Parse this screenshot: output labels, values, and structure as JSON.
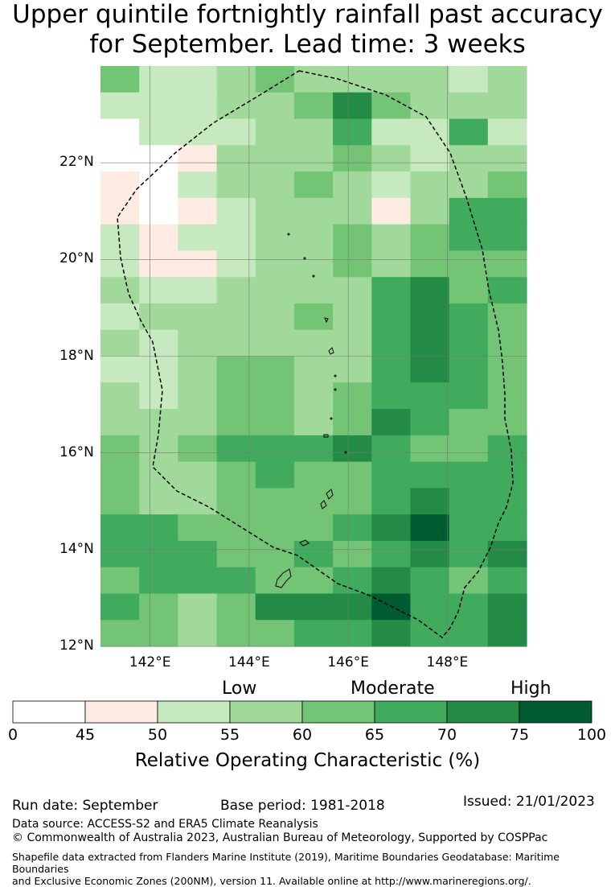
{
  "title_line1": "Upper quintile fortnightly rainfall past accuracy",
  "title_line2": "for September. Lead time: 3 weeks",
  "map": {
    "lon_range": [
      141.0,
      149.6
    ],
    "lat_range": [
      12.0,
      24.0
    ],
    "lat_ticks": [
      {
        "value": 22,
        "label": "22°N"
      },
      {
        "value": 20,
        "label": "20°N"
      },
      {
        "value": 18,
        "label": "18°N"
      },
      {
        "value": 16,
        "label": "16°N"
      },
      {
        "value": 14,
        "label": "14°N"
      },
      {
        "value": 12,
        "label": "12°N"
      }
    ],
    "lon_ticks": [
      {
        "value": 142,
        "label": "142°E"
      },
      {
        "value": 144,
        "label": "144°E"
      },
      {
        "value": 146,
        "label": "146°E"
      },
      {
        "value": 148,
        "label": "148°E"
      }
    ],
    "grid_rows_top_to_bottom": [
      [
        4,
        2,
        2,
        3,
        4,
        3,
        3,
        3,
        3,
        2,
        3
      ],
      [
        2,
        2,
        2,
        3,
        3,
        4,
        6,
        4,
        3,
        3,
        3
      ],
      [
        0,
        2,
        2,
        2,
        3,
        3,
        5,
        2,
        2,
        5,
        2
      ],
      [
        0,
        0,
        1,
        3,
        3,
        3,
        4,
        3,
        2,
        3,
        3
      ],
      [
        1,
        0,
        2,
        3,
        3,
        4,
        3,
        2,
        3,
        3,
        4
      ],
      [
        1,
        0,
        1,
        2,
        3,
        3,
        3,
        1,
        3,
        5,
        5
      ],
      [
        2,
        1,
        2,
        2,
        3,
        3,
        4,
        3,
        4,
        5,
        5
      ],
      [
        2,
        1,
        1,
        2,
        3,
        3,
        4,
        3,
        4,
        4,
        4
      ],
      [
        3,
        2,
        2,
        3,
        3,
        3,
        3,
        5,
        6,
        4,
        5
      ],
      [
        2,
        3,
        3,
        3,
        3,
        4,
        3,
        5,
        6,
        5,
        4
      ],
      [
        3,
        2,
        3,
        3,
        3,
        3,
        3,
        5,
        6,
        5,
        4
      ],
      [
        2,
        2,
        3,
        4,
        4,
        3,
        3,
        5,
        6,
        5,
        4
      ],
      [
        3,
        2,
        3,
        4,
        4,
        3,
        4,
        5,
        5,
        5,
        4
      ],
      [
        3,
        3,
        3,
        4,
        4,
        3,
        4,
        6,
        5,
        4,
        4
      ],
      [
        4,
        3,
        4,
        5,
        5,
        5,
        6,
        5,
        4,
        4,
        5
      ],
      [
        4,
        3,
        3,
        4,
        5,
        4,
        4,
        5,
        5,
        5,
        5
      ],
      [
        4,
        3,
        3,
        4,
        4,
        4,
        4,
        5,
        6,
        5,
        5
      ],
      [
        5,
        5,
        4,
        4,
        4,
        4,
        5,
        6,
        7,
        5,
        5
      ],
      [
        5,
        5,
        5,
        4,
        4,
        5,
        4,
        5,
        6,
        5,
        6
      ],
      [
        4,
        5,
        5,
        5,
        4,
        4,
        5,
        6,
        5,
        4,
        5
      ],
      [
        5,
        4,
        3,
        4,
        6,
        6,
        6,
        7,
        5,
        5,
        6
      ],
      [
        4,
        4,
        3,
        4,
        4,
        5,
        5,
        6,
        5,
        5,
        6
      ]
    ]
  },
  "colorbar": {
    "bins": [
      {
        "from": 0,
        "to": 45,
        "color": "#ffffff"
      },
      {
        "from": 45,
        "to": 50,
        "color": "#feebe2"
      },
      {
        "from": 50,
        "to": 55,
        "color": "#c7e9c0"
      },
      {
        "from": 55,
        "to": 60,
        "color": "#a1d99b"
      },
      {
        "from": 60,
        "to": 65,
        "color": "#74c476"
      },
      {
        "from": 65,
        "to": 70,
        "color": "#41ab5d"
      },
      {
        "from": 70,
        "to": 75,
        "color": "#238b45"
      },
      {
        "from": 75,
        "to": 100,
        "color": "#005a32"
      }
    ],
    "ticks": [
      "0",
      "45",
      "50",
      "55",
      "60",
      "65",
      "70",
      "75",
      "100"
    ],
    "categories": {
      "low": "Low",
      "moderate": "Moderate",
      "high": "High"
    },
    "label": "Relative Operating Characteristic (%)"
  },
  "footer": {
    "run_date": "Run date: September",
    "base_period": "Base period: 1981-2018",
    "issued": "Issued: 21/01/2023",
    "data_source": "Data source: ACCESS-S2 and ERA5 Climate Reanalysis",
    "copyright": "© Commonwealth of Australia 2023, Australian Bureau of Meteorology, Supported by COSPPac",
    "shapefile_line1": "Shapefile data extracted from Flanders Marine Institute (2019), Maritime Boundaries Geodatabase: Maritime Boundaries",
    "shapefile_line2": "and Exclusive Economic Zones (200NM), version 11. Available online at http://www.marineregions.org/."
  }
}
